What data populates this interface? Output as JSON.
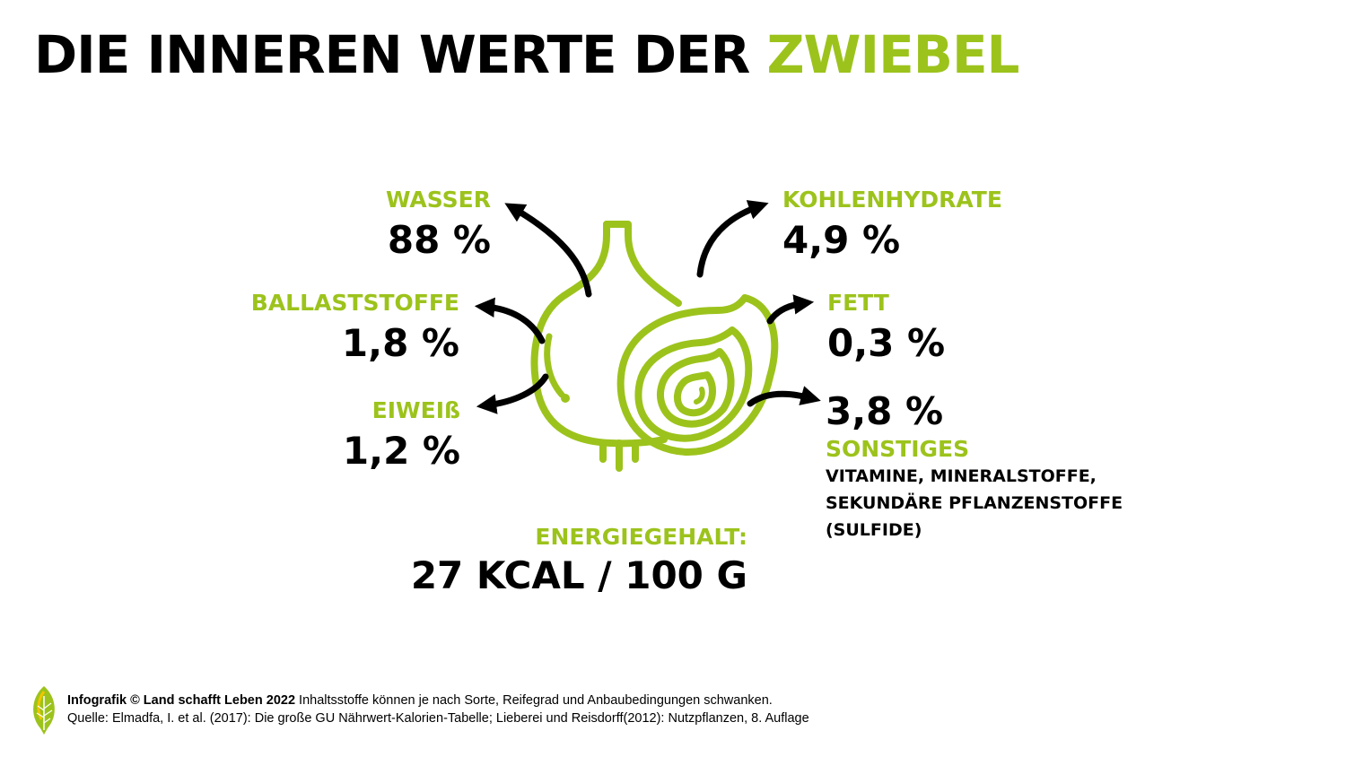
{
  "title": {
    "prefix": "DIE INNEREN WERTE DER",
    "highlight": "ZWIEBEL"
  },
  "nutrients": {
    "wasser": {
      "label": "WASSER",
      "value": "88 %"
    },
    "ballaststoffe": {
      "label": "BALLASTSTOFFE",
      "value": "1,8 %"
    },
    "eiweiss": {
      "label": "EIWEIß",
      "value": "1,2 %"
    },
    "kohlenhydrate": {
      "label": "KOHLENHYDRATE",
      "value": "4,9 %"
    },
    "fett": {
      "label": "FETT",
      "value": "0,3 %"
    },
    "sonstiges": {
      "value": "3,8 %",
      "label": "SONSTIGES",
      "details": [
        "VITAMINE, MINERALSTOFFE,",
        "SEKUNDÄRE PFLANZENSTOFFE",
        "(SULFIDE)"
      ]
    }
  },
  "energy": {
    "label": "ENERGIEGEHALT:",
    "value": "27 KCAL / 100 G"
  },
  "footer": {
    "brand_prefix": "Infografik © Land schafft Leben 2022",
    "note": " Inhaltsstoffe können je nach Sorte, Reifegrad und Anbaubedingungen schwanken.",
    "source": "Quelle: Elmadfa, I. et al. (2017): Die große GU Nährwert-Kalorien-Tabelle; Lieberei und Reisdorff(2012): Nutzpflanzen, 8. Auflage"
  },
  "colors": {
    "accent": "#9cc31c",
    "text": "#000000",
    "background": "#ffffff"
  },
  "icons": [
    "onion-illustration-icon",
    "arrow-icon",
    "leaf-logo-icon"
  ]
}
